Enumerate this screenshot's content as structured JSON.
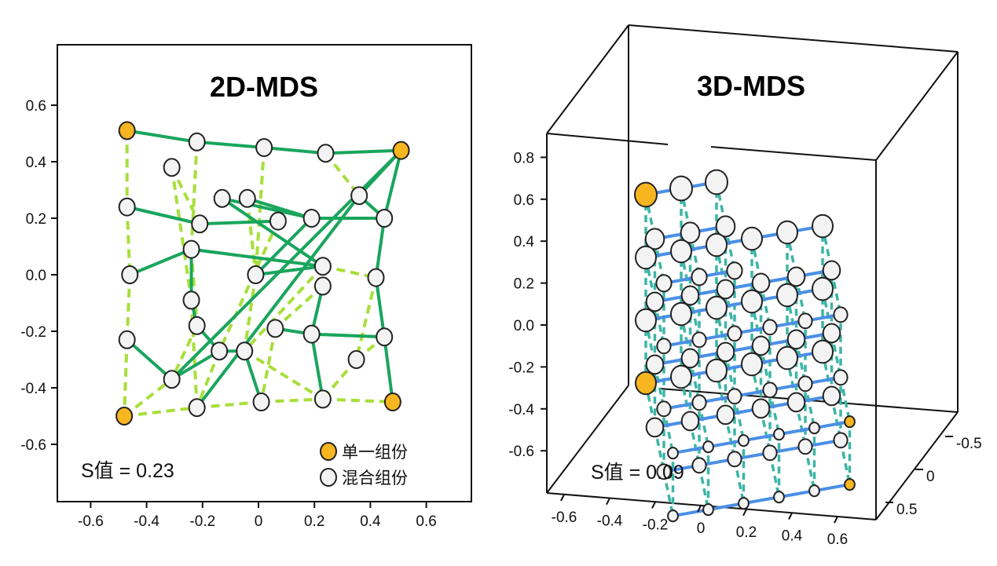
{
  "colors": {
    "pure": "#f7b520",
    "mixture": "#f3f3f3",
    "outline": "#222222",
    "edge2d_solid": "#19a55c",
    "edge2d_dashed": "#a7df3a",
    "edge3d_solid": "#4a8fe6",
    "edge3d_dashed": "#3cb5a6"
  },
  "chart_data": [
    {
      "type": "scatter",
      "title": "2D-MDS",
      "xlim": [
        -0.75,
        0.75
      ],
      "ylim": [
        -0.8,
        0.76
      ],
      "x_ticks": [
        "-0.6",
        "-0.4",
        "-0.2",
        "0",
        "0.2",
        "0.4",
        "0.6"
      ],
      "x_tick_values": [
        -0.6,
        -0.4,
        -0.2,
        0,
        0.2,
        0.4,
        0.6
      ],
      "y_ticks": [
        "0.6",
        "0.4",
        "0.2",
        "0.0",
        "-0.2",
        "-0.4",
        "-0.6"
      ],
      "y_tick_values": [
        0.6,
        0.4,
        0.2,
        0.0,
        -0.2,
        -0.4,
        -0.6
      ],
      "stress_label": "S值 = 0.23",
      "legend": {
        "placement": "bottom-right",
        "pure_label": "单一组份",
        "mixture_label": "混合组份"
      },
      "points": [
        {
          "x": -0.47,
          "y": 0.51,
          "kind": "pure"
        },
        {
          "x": -0.22,
          "y": 0.47,
          "kind": "mixture"
        },
        {
          "x": 0.02,
          "y": 0.45,
          "kind": "mixture"
        },
        {
          "x": 0.24,
          "y": 0.43,
          "kind": "mixture"
        },
        {
          "x": 0.51,
          "y": 0.44,
          "kind": "pure"
        },
        {
          "x": -0.31,
          "y": 0.38,
          "kind": "mixture"
        },
        {
          "x": -0.47,
          "y": 0.24,
          "kind": "mixture"
        },
        {
          "x": -0.13,
          "y": 0.27,
          "kind": "mixture"
        },
        {
          "x": -0.04,
          "y": 0.27,
          "kind": "mixture"
        },
        {
          "x": 0.36,
          "y": 0.28,
          "kind": "mixture"
        },
        {
          "x": -0.21,
          "y": 0.18,
          "kind": "mixture"
        },
        {
          "x": 0.07,
          "y": 0.19,
          "kind": "mixture"
        },
        {
          "x": 0.19,
          "y": 0.2,
          "kind": "mixture"
        },
        {
          "x": 0.45,
          "y": 0.2,
          "kind": "mixture"
        },
        {
          "x": -0.24,
          "y": 0.09,
          "kind": "mixture"
        },
        {
          "x": -0.46,
          "y": 0.0,
          "kind": "mixture"
        },
        {
          "x": -0.01,
          "y": 0.0,
          "kind": "mixture"
        },
        {
          "x": 0.23,
          "y": 0.03,
          "kind": "mixture"
        },
        {
          "x": 0.42,
          "y": -0.01,
          "kind": "mixture"
        },
        {
          "x": 0.23,
          "y": -0.04,
          "kind": "mixture"
        },
        {
          "x": -0.24,
          "y": -0.09,
          "kind": "mixture"
        },
        {
          "x": -0.22,
          "y": -0.18,
          "kind": "mixture"
        },
        {
          "x": 0.06,
          "y": -0.19,
          "kind": "mixture"
        },
        {
          "x": 0.19,
          "y": -0.21,
          "kind": "mixture"
        },
        {
          "x": 0.45,
          "y": -0.22,
          "kind": "mixture"
        },
        {
          "x": -0.47,
          "y": -0.23,
          "kind": "mixture"
        },
        {
          "x": -0.14,
          "y": -0.27,
          "kind": "mixture"
        },
        {
          "x": -0.05,
          "y": -0.27,
          "kind": "mixture"
        },
        {
          "x": 0.35,
          "y": -0.3,
          "kind": "mixture"
        },
        {
          "x": -0.31,
          "y": -0.37,
          "kind": "mixture"
        },
        {
          "x": -0.48,
          "y": -0.5,
          "kind": "pure"
        },
        {
          "x": -0.22,
          "y": -0.47,
          "kind": "mixture"
        },
        {
          "x": 0.01,
          "y": -0.45,
          "kind": "mixture"
        },
        {
          "x": 0.23,
          "y": -0.44,
          "kind": "mixture"
        },
        {
          "x": 0.48,
          "y": -0.45,
          "kind": "pure"
        }
      ],
      "edges_solid": [
        [
          0,
          1
        ],
        [
          1,
          2
        ],
        [
          2,
          3
        ],
        [
          3,
          4
        ],
        [
          6,
          10
        ],
        [
          10,
          11
        ],
        [
          7,
          12
        ],
        [
          12,
          13
        ],
        [
          9,
          13
        ],
        [
          14,
          17
        ],
        [
          16,
          17
        ],
        [
          4,
          9
        ],
        [
          4,
          13
        ],
        [
          13,
          18
        ],
        [
          18,
          24
        ],
        [
          24,
          34
        ],
        [
          15,
          14
        ],
        [
          14,
          20
        ],
        [
          20,
          21
        ],
        [
          21,
          26
        ],
        [
          26,
          27
        ],
        [
          27,
          32
        ],
        [
          23,
          24
        ],
        [
          22,
          23
        ],
        [
          19,
          23
        ],
        [
          23,
          33
        ],
        [
          25,
          29
        ],
        [
          29,
          26
        ],
        [
          4,
          29
        ],
        [
          9,
          31
        ],
        [
          12,
          16
        ],
        [
          8,
          12
        ],
        [
          7,
          17
        ],
        [
          6,
          10
        ]
      ],
      "edges_dashed": [
        [
          0,
          6
        ],
        [
          6,
          15
        ],
        [
          15,
          25
        ],
        [
          25,
          30
        ],
        [
          30,
          31
        ],
        [
          31,
          32
        ],
        [
          32,
          33
        ],
        [
          33,
          34
        ],
        [
          1,
          14
        ],
        [
          5,
          20
        ],
        [
          2,
          16
        ],
        [
          3,
          9
        ],
        [
          9,
          13
        ],
        [
          14,
          21
        ],
        [
          21,
          29
        ],
        [
          20,
          31
        ],
        [
          16,
          27
        ],
        [
          11,
          26
        ],
        [
          17,
          18
        ],
        [
          17,
          27
        ],
        [
          23,
          24
        ],
        [
          27,
          33
        ],
        [
          28,
          24
        ],
        [
          28,
          33
        ],
        [
          5,
          10
        ],
        [
          22,
          32
        ],
        [
          30,
          29
        ],
        [
          26,
          31
        ],
        [
          8,
          16
        ],
        [
          19,
          22
        ],
        [
          18,
          28
        ]
      ]
    },
    {
      "type": "scatter",
      "title": "3D-MDS",
      "z_ticks": [
        "0.8",
        "0.6",
        "0.4",
        "0.2",
        "0.0",
        "-0.2",
        "-0.4",
        "-0.6"
      ],
      "z_tick_values": [
        0.8,
        0.6,
        0.4,
        0.2,
        0.0,
        -0.2,
        -0.4,
        -0.6
      ],
      "x_ticks": [
        "-0.6",
        "-0.4",
        "-0.2",
        "0",
        "0.2",
        "0.4",
        "0.6"
      ],
      "y_ticks": [
        "-0.5",
        "0",
        "0.5"
      ],
      "stress_label": "S值 = 0.09",
      "points": [
        {
          "x": -0.5,
          "y": 0.5,
          "z": -0.3,
          "kind": "pure"
        },
        {
          "x": 0.5,
          "y": 0.5,
          "z": -0.1,
          "kind": "pure"
        },
        {
          "x": -0.5,
          "y": -0.5,
          "z": 0.8,
          "kind": "pure"
        },
        {
          "x": 0.6,
          "y": -0.5,
          "z": 0.25,
          "kind": "pure"
        }
      ]
    }
  ]
}
